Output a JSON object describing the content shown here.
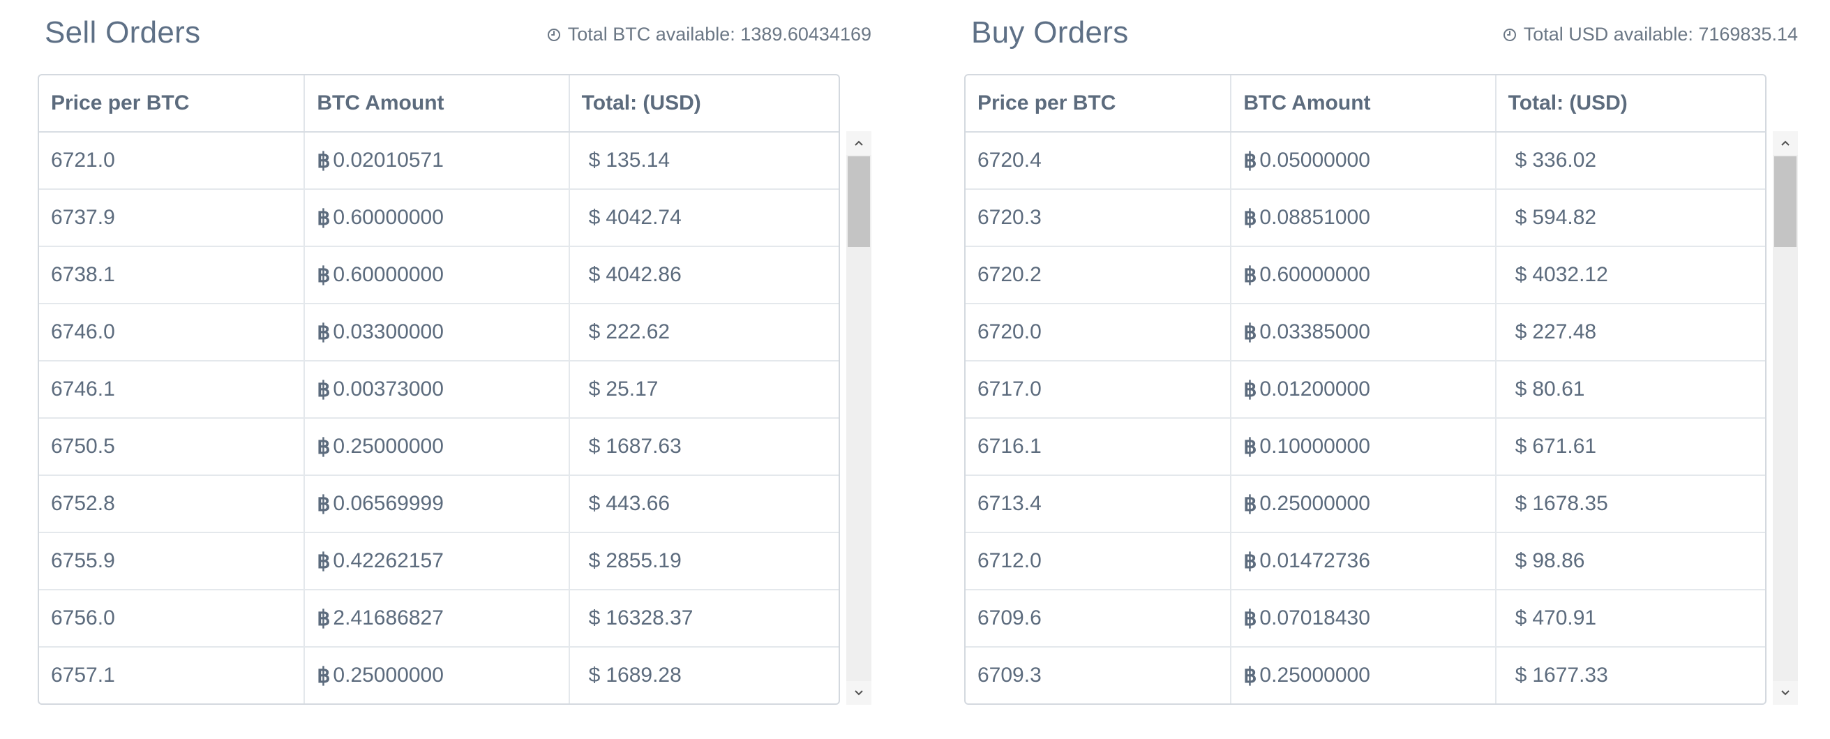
{
  "sell": {
    "title": "Sell Orders",
    "info": "Total BTC available: 1389.60434169",
    "headers": [
      "Price per BTC",
      "BTC Amount",
      "Total: (USD)"
    ],
    "btc_symbol": "฿",
    "usd_symbol": "$",
    "rows": [
      {
        "price": "6721.0",
        "amount": "0.02010571",
        "total": "135.14"
      },
      {
        "price": "6737.9",
        "amount": "0.60000000",
        "total": "4042.74"
      },
      {
        "price": "6738.1",
        "amount": "0.60000000",
        "total": "4042.86"
      },
      {
        "price": "6746.0",
        "amount": "0.03300000",
        "total": "222.62"
      },
      {
        "price": "6746.1",
        "amount": "0.00373000",
        "total": "25.17"
      },
      {
        "price": "6750.5",
        "amount": "0.25000000",
        "total": "1687.63"
      },
      {
        "price": "6752.8",
        "amount": "0.06569999",
        "total": "443.66"
      },
      {
        "price": "6755.9",
        "amount": "0.42262157",
        "total": "2855.19"
      },
      {
        "price": "6756.0",
        "amount": "2.41686827",
        "total": "16328.37"
      },
      {
        "price": "6757.1",
        "amount": "0.25000000",
        "total": "1689.28"
      }
    ]
  },
  "buy": {
    "title": "Buy Orders",
    "info": "Total USD available: 7169835.14",
    "headers": [
      "Price per BTC",
      "BTC Amount",
      "Total: (USD)"
    ],
    "btc_symbol": "฿",
    "usd_symbol": "$",
    "rows": [
      {
        "price": "6720.4",
        "amount": "0.05000000",
        "total": "336.02"
      },
      {
        "price": "6720.3",
        "amount": "0.08851000",
        "total": "594.82"
      },
      {
        "price": "6720.2",
        "amount": "0.60000000",
        "total": "4032.12"
      },
      {
        "price": "6720.0",
        "amount": "0.03385000",
        "total": "227.48"
      },
      {
        "price": "6717.0",
        "amount": "0.01200000",
        "total": "80.61"
      },
      {
        "price": "6716.1",
        "amount": "0.10000000",
        "total": "671.61"
      },
      {
        "price": "6713.4",
        "amount": "0.25000000",
        "total": "1678.35"
      },
      {
        "price": "6712.0",
        "amount": "0.01472736",
        "total": "98.86"
      },
      {
        "price": "6709.6",
        "amount": "0.07018430",
        "total": "470.91"
      },
      {
        "price": "6709.3",
        "amount": "0.25000000",
        "total": "1677.33"
      }
    ]
  },
  "icons": {
    "info": "clock-icon",
    "scroll_up": "chevron-up-icon",
    "scroll_down": "chevron-down-icon"
  },
  "colors": {
    "title": "#5e7086",
    "text": "#5c6b7d",
    "border": "#d4d9df",
    "scroll_track": "#efefef",
    "scroll_thumb": "#c4c4c4"
  }
}
